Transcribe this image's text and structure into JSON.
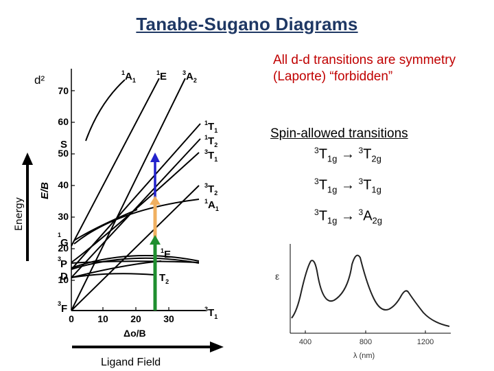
{
  "title": "Tanabe-Sugano Diagrams",
  "note": "All d-d transitions are symmetry (Laporte) “forbidden”",
  "spin_allowed_heading": "Spin-allowed transitions",
  "transitions": [
    {
      "from_sup": "3",
      "from_base": "T",
      "from_sub": "1g",
      "arrow": "→",
      "to_sup": "3",
      "to_base": "T",
      "to_sub": "2g"
    },
    {
      "from_sup": "3",
      "from_base": "T",
      "from_sub": "1g",
      "arrow": "→",
      "to_sup": "3",
      "to_base": "T",
      "to_sub": "1g"
    },
    {
      "from_sup": "3",
      "from_base": "T",
      "from_sub": "1g",
      "arrow": "→",
      "to_sup": "3",
      "to_base": "A",
      "to_sub": "2g"
    }
  ],
  "diagram": {
    "config_label": "d²",
    "y_axis_label": "E/B",
    "x_axis_label": "Δo/B",
    "energy_label": "Energy",
    "ligand_field_label": "Ligand Field",
    "y_ticks": [
      "70",
      "60",
      "50",
      "40",
      "30",
      "20",
      "10",
      "0"
    ],
    "x_ticks": [
      "0",
      "10",
      "20",
      "30"
    ],
    "left_terms": [
      "S",
      "G",
      "P",
      "D",
      "F"
    ],
    "right_terms_top": [
      {
        "sup": "1",
        "base": "A",
        "sub": "1"
      },
      {
        "sup": "1",
        "base": "E",
        "sub": ""
      },
      {
        "sup": "3",
        "base": "A",
        "sub": "2"
      }
    ],
    "right_terms_side": [
      {
        "sup": "1",
        "base": "T",
        "sub": "1"
      },
      {
        "sup": "1",
        "base": "T",
        "sub": "2"
      },
      {
        "sup": "3",
        "base": "T",
        "sub": "1"
      },
      {
        "sup": "3",
        "base": "T",
        "sub": "2"
      },
      {
        "sup": "1",
        "base": "A",
        "sub": "1"
      },
      {
        "sup": "1",
        "base": "E",
        "sub": ""
      },
      {
        "sup": "",
        "base": "T",
        "sub": "2"
      },
      {
        "sup": "3",
        "base": "T",
        "sub": "1"
      }
    ],
    "arrow_colors": {
      "blue": "#2222cc",
      "orange": "#f0b060",
      "green": "#1f8f2f"
    }
  },
  "spectrum": {
    "y_label": "ε",
    "x_label": "λ (nm)",
    "x_ticks": [
      "400",
      "800",
      "1200"
    ]
  }
}
